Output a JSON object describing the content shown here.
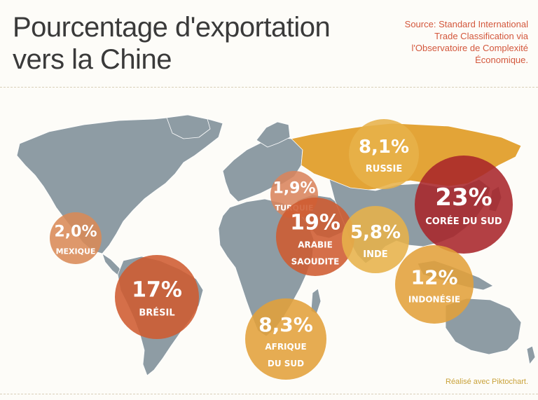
{
  "title": {
    "line1": "Pourcentage d'exportation",
    "line2": "vers la Chine"
  },
  "source": {
    "line1": "Source: Standard International",
    "line2": "Trade Classification via",
    "line3": "l'Observatoire de Complexité",
    "line4": "Économique."
  },
  "credit": "Réalisé avec Piktochart.",
  "colors": {
    "land": "#8e9ca4",
    "russia": "#e3a437",
    "background": "#fdfcf8",
    "title": "#3a3a3a",
    "source": "#d3573c",
    "credit": "#c9a23a"
  },
  "countries": [
    {
      "id": "mexique",
      "value": "2,0%",
      "label": [
        "MEXIQUE"
      ],
      "color": "#d98a57"
    },
    {
      "id": "bresil",
      "value": "17%",
      "label": [
        "BRÉSIL"
      ],
      "color": "#cf5b30"
    },
    {
      "id": "turquie",
      "value": "1,9%",
      "label": [
        "TURQUIE"
      ],
      "color": "#d9845c"
    },
    {
      "id": "arabie-saoudite",
      "value": "19%",
      "label": [
        "ARABIE",
        "SAOUDITE"
      ],
      "color": "#cf5b30"
    },
    {
      "id": "russie",
      "value": "8,1%",
      "label": [
        "RUSSIE"
      ],
      "color": "#e7b24a"
    },
    {
      "id": "inde",
      "value": "5,8%",
      "label": [
        "INDE"
      ],
      "color": "#e7b24a"
    },
    {
      "id": "coree-du-sud",
      "value": "23%",
      "label": [
        "CORÉE DU SUD"
      ],
      "color": "#a8262a"
    },
    {
      "id": "indonesie",
      "value": "12%",
      "label": [
        "INDONÉSIE"
      ],
      "color": "#e3a03a"
    },
    {
      "id": "afrique-du-sud",
      "value": "8,3%",
      "label": [
        "AFRIQUE",
        "DU SUD"
      ],
      "color": "#e3a03a"
    }
  ]
}
